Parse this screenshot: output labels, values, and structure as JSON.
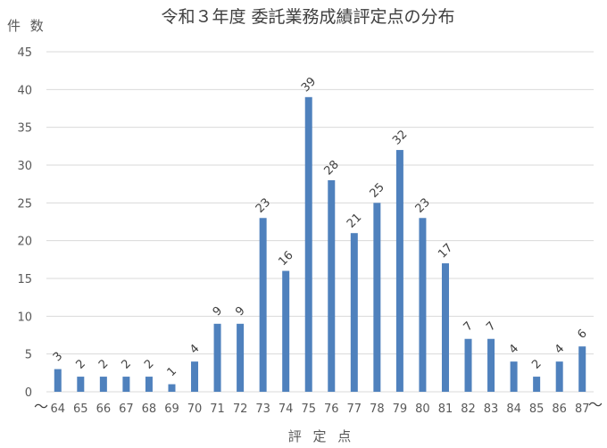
{
  "title": "令和３年度 委託業務成績評定点の分布",
  "y_axis_label": "件 数",
  "x_axis_label": "評 定 点",
  "tilde_left": "〜",
  "tilde_right": "〜",
  "colors": {
    "bar": "#4f81bd",
    "grid": "#d9d9d9",
    "text": "#595959"
  },
  "chart_data": {
    "type": "bar",
    "title": "令和３年度 委託業務成績評定点の分布",
    "xlabel": "評定点",
    "ylabel": "件数",
    "categories": [
      "64",
      "65",
      "66",
      "67",
      "68",
      "69",
      "70",
      "71",
      "72",
      "73",
      "74",
      "75",
      "76",
      "77",
      "78",
      "79",
      "80",
      "81",
      "82",
      "83",
      "84",
      "85",
      "86",
      "87"
    ],
    "values": [
      3,
      2,
      2,
      2,
      2,
      1,
      4,
      9,
      9,
      23,
      16,
      39,
      28,
      21,
      25,
      32,
      23,
      17,
      7,
      7,
      4,
      2,
      4,
      6
    ],
    "ylim": [
      0,
      45
    ],
    "yticks": [
      0,
      5,
      10,
      15,
      20,
      25,
      30,
      35,
      40,
      45
    ],
    "grid": true,
    "legend": "none",
    "data_labels": true,
    "data_label_rotation": -45,
    "notes": "First category means 64 and below, last means 87 and above (〜 marks)"
  }
}
